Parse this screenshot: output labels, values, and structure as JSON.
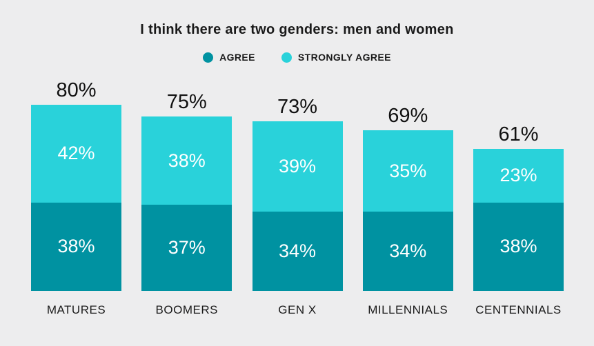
{
  "title": "I think there are two genders: men and women",
  "legend": {
    "items": [
      {
        "label": "AGREE",
        "color": "#0092A1"
      },
      {
        "label": "STRONGLY AGREE",
        "color": "#29D2DA"
      }
    ]
  },
  "chart_data": {
    "type": "bar",
    "stacked": true,
    "title": "I think there are two genders: men and women",
    "categories": [
      "MATURES",
      "BOOMERS",
      "GEN X",
      "MILLENNIALS",
      "CENTENNIALS"
    ],
    "series": [
      {
        "name": "AGREE",
        "color": "#0092A1",
        "values": [
          38,
          37,
          34,
          34,
          38
        ],
        "labels": [
          "38%",
          "37%",
          "34%",
          "34%",
          "38%"
        ]
      },
      {
        "name": "STRONGLY AGREE",
        "color": "#29D2DA",
        "values": [
          42,
          38,
          39,
          35,
          23
        ],
        "labels": [
          "42%",
          "38%",
          "39%",
          "35%",
          "23%"
        ]
      }
    ],
    "totals": [
      80,
      75,
      73,
      69,
      61
    ],
    "total_labels": [
      "80%",
      "75%",
      "73%",
      "69%",
      "61%"
    ],
    "ylim": [
      0,
      100
    ],
    "grid": false,
    "legend_position": "top",
    "value_label_color": "#FFFFFF",
    "xlabel": "",
    "ylabel": ""
  },
  "colors": {
    "background": "#EDEDEE",
    "text": "#1A1A1A",
    "agree": "#0092A1",
    "strongly_agree": "#29D2DA"
  }
}
